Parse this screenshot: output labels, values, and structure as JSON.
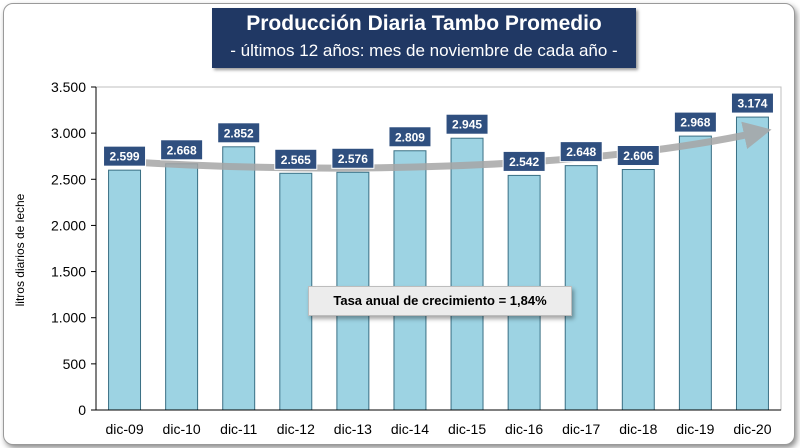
{
  "chart_data": {
    "type": "bar",
    "title": "Producción Diaria Tambo Promedio",
    "subtitle": "- últimos 12 años: mes de noviembre de cada año -",
    "xlabel": "",
    "ylabel": "litros diarios de leche",
    "categories": [
      "dic-09",
      "dic-10",
      "dic-11",
      "dic-12",
      "dic-13",
      "dic-14",
      "dic-15",
      "dic-16",
      "dic-17",
      "dic-18",
      "dic-19",
      "dic-20"
    ],
    "values": [
      2599,
      2668,
      2852,
      2565,
      2576,
      2809,
      2945,
      2542,
      2648,
      2606,
      2968,
      3174
    ],
    "value_labels": [
      "2.599",
      "2.668",
      "2.852",
      "2.565",
      "2.576",
      "2.809",
      "2.945",
      "2.542",
      "2.648",
      "2.606",
      "2.968",
      "3.174"
    ],
    "ylim": [
      0,
      3500
    ],
    "yticks": [
      0,
      500,
      1000,
      1500,
      2000,
      2500,
      3000,
      3500
    ],
    "ytick_labels": [
      "0",
      "500",
      "1.000",
      "1.500",
      "2.000",
      "2.500",
      "3.000",
      "3.500"
    ],
    "grid": false,
    "annotation": "Tasa anual de crecimiento = 1,84%",
    "colors": {
      "bar_fill": "#9dd3e3",
      "bar_stroke": "#3a6f84",
      "label_bg": "#2f4f7f",
      "title_bg": "#203864",
      "trend_arrow": "#a6a6a6"
    }
  }
}
